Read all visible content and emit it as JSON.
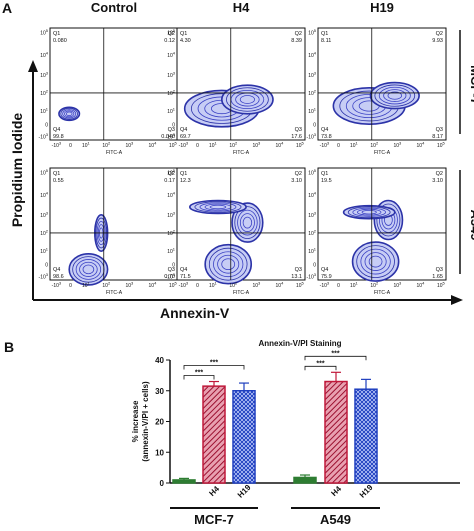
{
  "panel_a": {
    "label": "A",
    "columns": [
      "Control",
      "H4",
      "H19"
    ],
    "rows": [
      "MCF-7",
      "A549"
    ],
    "y_axis_label": "Propidium Iodide",
    "x_axis_label": "Annexin-V",
    "mini_xlabel": "FITC-A",
    "quad_names": [
      "Q1",
      "Q2",
      "Q3",
      "Q4"
    ],
    "tick_labels": {
      "y": [
        "10^5",
        "10^4",
        "10^3",
        "10^2",
        "10^1",
        "0",
        "-10^3"
      ],
      "x": [
        "-10^3",
        "0",
        "10^1",
        "10^2",
        "10^3",
        "10^4",
        "10^5"
      ]
    },
    "plots": [
      {
        "cell": "MCF-7",
        "treatment": "Control",
        "q1": "0.080",
        "q2": "0.12",
        "q3": "0.040",
        "q4": "99.8"
      },
      {
        "cell": "MCF-7",
        "treatment": "H4",
        "q1": "4.30",
        "q2": "8.39",
        "q3": "17.6",
        "q4": "69.7"
      },
      {
        "cell": "MCF-7",
        "treatment": "H19",
        "q1": "8.11",
        "q2": "9.93",
        "q3": "8.17",
        "q4": "73.8"
      },
      {
        "cell": "A549",
        "treatment": "Control",
        "q1": "0.55",
        "q2": "0.17",
        "q3": "0.70",
        "q4": "98.6"
      },
      {
        "cell": "A549",
        "treatment": "H4",
        "q1": "12.3",
        "q2": "3.10",
        "q3": "13.1",
        "q4": "71.5"
      },
      {
        "cell": "A549",
        "treatment": "H19",
        "q1": "19.5",
        "q2": "3.10",
        "q3": "1.65",
        "q4": "75.9"
      }
    ]
  },
  "panel_b": {
    "label": "B",
    "significance": "***"
  },
  "chart_data": {
    "type": "bar",
    "title": "Annexin-V/PI Staining",
    "ylabel": "% increase\n(annexin-V/PI + cells)",
    "ylim": [
      0,
      40
    ],
    "yticks": [
      0,
      10,
      20,
      30,
      40
    ],
    "groups": [
      {
        "name": "MCF-7",
        "categories": [
          "",
          "H4",
          "H19"
        ],
        "values": [
          1.0,
          31.5,
          30.0
        ],
        "errors": [
          0.5,
          1.5,
          2.5
        ]
      },
      {
        "name": "A549",
        "categories": [
          "",
          "H4",
          "H19"
        ],
        "values": [
          1.8,
          33.0,
          30.5
        ],
        "errors": [
          0.8,
          3.0,
          3.2
        ]
      }
    ],
    "colors": {
      "control": "#2e7d32",
      "h4": "#c0183a",
      "h19": "#1f3fbf"
    }
  }
}
